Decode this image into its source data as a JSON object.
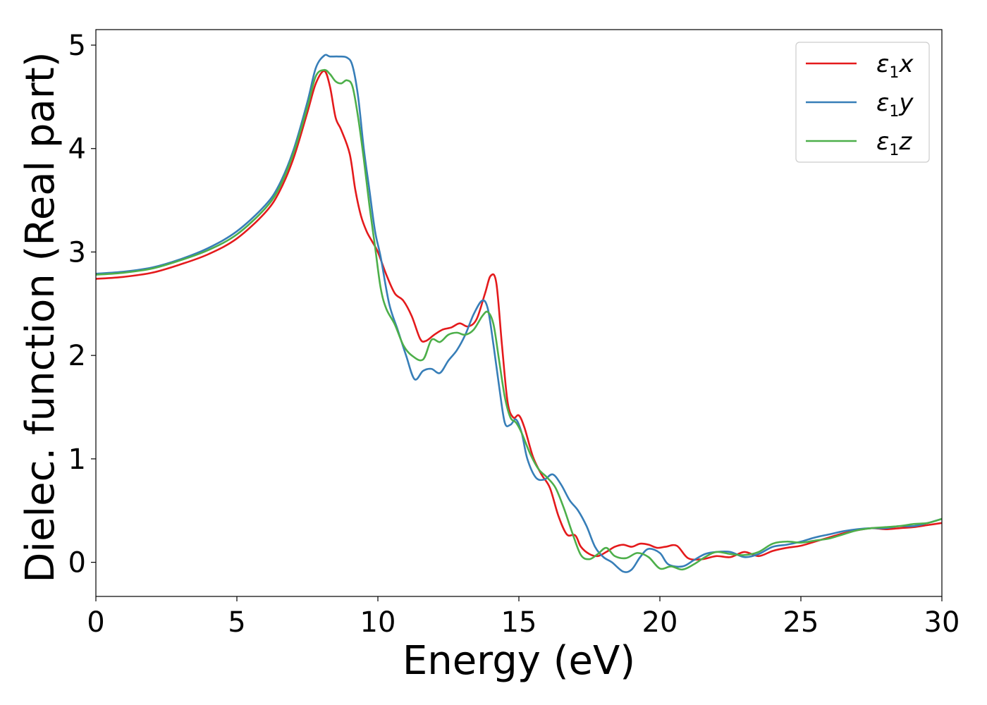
{
  "chart_data": {
    "type": "line",
    "title": "",
    "xlabel": "Energy (eV)",
    "ylabel": "Dielec. function (Real part)",
    "xlim": [
      0,
      30
    ],
    "ylim": [
      -0.33,
      5.15
    ],
    "xticks": [
      "0",
      "5",
      "10",
      "15",
      "20",
      "25",
      "30"
    ],
    "yticks": [
      "0",
      "1",
      "2",
      "3",
      "4",
      "5"
    ],
    "grid": false,
    "legend_position": "top-right",
    "series": [
      {
        "name_base": "ε",
        "name_sub": "1",
        "name_suffix": "x",
        "color": "#e41a1c",
        "x": [
          0,
          1,
          2,
          3,
          4,
          5,
          6,
          6.5,
          7,
          7.5,
          7.8,
          8.1,
          8.3,
          8.5,
          8.7,
          9.0,
          9.2,
          9.4,
          9.6,
          9.8,
          10.0,
          10.3,
          10.6,
          10.9,
          11.2,
          11.5,
          11.7,
          12.0,
          12.3,
          12.6,
          12.9,
          13.2,
          13.5,
          13.8,
          14.0,
          14.2,
          14.4,
          14.6,
          14.8,
          15.0,
          15.2,
          15.5,
          15.8,
          16.1,
          16.4,
          16.7,
          17.0,
          17.2,
          17.5,
          17.8,
          18.1,
          18.4,
          18.7,
          19.0,
          19.3,
          19.6,
          19.9,
          20.2,
          20.6,
          21.0,
          21.5,
          22.0,
          22.5,
          23.0,
          23.5,
          24.0,
          24.5,
          25.0,
          25.5,
          26.0,
          26.5,
          27.0,
          27.5,
          28.0,
          28.5,
          29.0,
          29.5,
          30.0
        ],
        "y": [
          2.74,
          2.76,
          2.8,
          2.88,
          2.98,
          3.13,
          3.38,
          3.58,
          3.9,
          4.35,
          4.63,
          4.75,
          4.6,
          4.3,
          4.18,
          3.95,
          3.6,
          3.35,
          3.2,
          3.1,
          3.0,
          2.78,
          2.6,
          2.53,
          2.38,
          2.16,
          2.14,
          2.2,
          2.25,
          2.27,
          2.31,
          2.28,
          2.35,
          2.6,
          2.77,
          2.7,
          2.1,
          1.55,
          1.4,
          1.42,
          1.3,
          1.02,
          0.85,
          0.72,
          0.45,
          0.27,
          0.26,
          0.15,
          0.08,
          0.06,
          0.1,
          0.15,
          0.17,
          0.15,
          0.18,
          0.17,
          0.14,
          0.15,
          0.16,
          0.04,
          0.03,
          0.06,
          0.05,
          0.1,
          0.06,
          0.11,
          0.14,
          0.16,
          0.2,
          0.24,
          0.28,
          0.31,
          0.33,
          0.32,
          0.33,
          0.34,
          0.36,
          0.38
        ]
      },
      {
        "name_base": "ε",
        "name_sub": "1",
        "name_suffix": "y",
        "color": "#377eb8",
        "x": [
          0,
          1,
          2,
          3,
          4,
          5,
          6,
          6.5,
          7,
          7.5,
          7.8,
          8.1,
          8.3,
          8.6,
          8.9,
          9.1,
          9.3,
          9.5,
          9.7,
          9.9,
          10.1,
          10.4,
          10.7,
          11.0,
          11.3,
          11.6,
          11.9,
          12.2,
          12.5,
          12.8,
          13.1,
          13.4,
          13.7,
          13.9,
          14.1,
          14.3,
          14.5,
          14.7,
          14.9,
          15.1,
          15.3,
          15.6,
          15.9,
          16.2,
          16.5,
          16.8,
          17.1,
          17.4,
          17.7,
          18.0,
          18.3,
          18.7,
          19.0,
          19.3,
          19.6,
          20.0,
          20.3,
          20.8,
          21.2,
          21.6,
          22.0,
          22.5,
          23.0,
          23.5,
          24.0,
          24.5,
          25.0,
          25.5,
          26.0,
          26.5,
          27.0,
          27.5,
          28.0,
          28.5,
          29.0,
          29.5,
          30.0
        ],
        "y": [
          2.79,
          2.81,
          2.85,
          2.93,
          3.04,
          3.2,
          3.45,
          3.65,
          3.98,
          4.45,
          4.78,
          4.9,
          4.89,
          4.89,
          4.88,
          4.8,
          4.5,
          4.0,
          3.6,
          3.2,
          2.95,
          2.5,
          2.25,
          2.0,
          1.77,
          1.85,
          1.87,
          1.83,
          1.95,
          2.05,
          2.2,
          2.4,
          2.53,
          2.45,
          2.1,
          1.7,
          1.35,
          1.33,
          1.38,
          1.25,
          1.0,
          0.82,
          0.8,
          0.85,
          0.75,
          0.6,
          0.5,
          0.35,
          0.15,
          0.05,
          0.0,
          -0.09,
          -0.07,
          0.05,
          0.13,
          0.09,
          -0.02,
          -0.04,
          0.02,
          0.08,
          0.1,
          0.1,
          0.05,
          0.08,
          0.15,
          0.17,
          0.2,
          0.24,
          0.27,
          0.3,
          0.32,
          0.33,
          0.33,
          0.35,
          0.35,
          0.38,
          0.42
        ]
      },
      {
        "name_base": "ε",
        "name_sub": "1",
        "name_suffix": "z",
        "color": "#4daf4a",
        "x": [
          0,
          1,
          2,
          3,
          4,
          5,
          6,
          6.5,
          7,
          7.5,
          7.8,
          8.1,
          8.3,
          8.5,
          8.7,
          8.9,
          9.1,
          9.3,
          9.5,
          9.7,
          9.9,
          10.1,
          10.3,
          10.6,
          10.9,
          11.2,
          11.6,
          11.9,
          12.2,
          12.5,
          12.8,
          13.1,
          13.4,
          13.7,
          13.9,
          14.1,
          14.3,
          14.5,
          14.7,
          14.9,
          15.1,
          15.4,
          15.7,
          16.0,
          16.3,
          16.6,
          16.9,
          17.2,
          17.5,
          17.8,
          18.1,
          18.4,
          18.8,
          19.2,
          19.6,
          20.0,
          20.4,
          20.8,
          21.2,
          21.6,
          22.0,
          22.5,
          23.0,
          23.5,
          24.0,
          24.5,
          25.0,
          25.5,
          26.0,
          26.5,
          27.0,
          27.5,
          28.0,
          28.5,
          29.0,
          29.5,
          30.0
        ],
        "y": [
          2.78,
          2.8,
          2.84,
          2.92,
          3.02,
          3.17,
          3.42,
          3.62,
          3.95,
          4.4,
          4.7,
          4.76,
          4.72,
          4.65,
          4.63,
          4.66,
          4.6,
          4.3,
          3.9,
          3.45,
          3.05,
          2.65,
          2.45,
          2.3,
          2.1,
          2.0,
          1.96,
          2.15,
          2.13,
          2.2,
          2.22,
          2.2,
          2.25,
          2.38,
          2.42,
          2.3,
          1.95,
          1.6,
          1.4,
          1.35,
          1.25,
          1.05,
          0.9,
          0.82,
          0.72,
          0.52,
          0.28,
          0.07,
          0.03,
          0.08,
          0.14,
          0.06,
          0.04,
          0.09,
          0.05,
          -0.06,
          -0.04,
          -0.07,
          -0.02,
          0.05,
          0.1,
          0.08,
          0.07,
          0.1,
          0.18,
          0.2,
          0.19,
          0.21,
          0.23,
          0.27,
          0.31,
          0.33,
          0.34,
          0.35,
          0.37,
          0.38,
          0.42
        ]
      }
    ]
  }
}
